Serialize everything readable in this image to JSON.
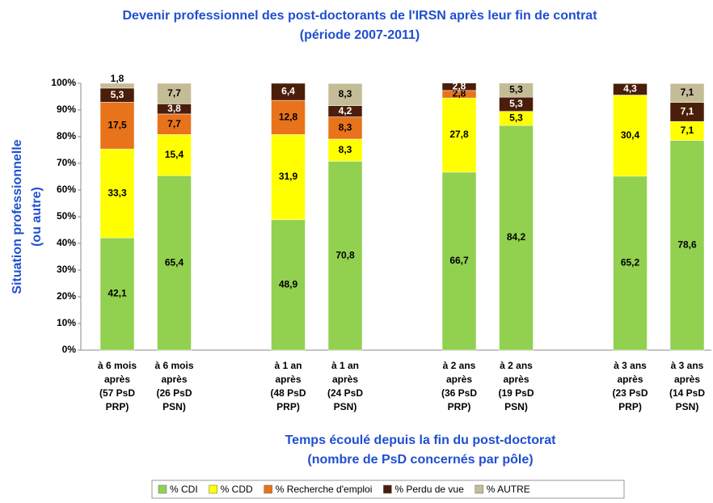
{
  "chart_data": {
    "type": "stacked_bar",
    "title": "Devenir professionnel des post-doctorants de l'IRSN après leur fin de contrat",
    "subtitle": "(période 2007-2011)",
    "x_label": [
      "Temps écoulé depuis la fin du post-doctorat",
      "(nombre de PsD concernés par pôle)"
    ],
    "y_label": [
      "Situation professionnelle",
      "(ou autre)"
    ],
    "categories": [
      [
        "à 6 mois",
        "après",
        "(57 PsD",
        "PRP)"
      ],
      [
        "à 6 mois",
        "après",
        "(26 PsD",
        "PSN)"
      ],
      [
        "à 1 an",
        "après",
        "(48 PsD",
        "PRP)"
      ],
      [
        "à 1 an",
        "après",
        "(24 PsD",
        "PSN)"
      ],
      [
        "à 2 ans",
        "après",
        "(36 PsD",
        "PRP)"
      ],
      [
        "à 2 ans",
        "après",
        "(19 PsD",
        "PSN)"
      ],
      [
        "à 3 ans",
        "après",
        "(23 PsD",
        "PRP)"
      ],
      [
        "à 3 ans",
        "après",
        "(14 PsD",
        "PSN)"
      ]
    ],
    "series": [
      {
        "name": "% CDI",
        "color": "#92d050",
        "values": [
          42.1,
          65.4,
          48.9,
          70.8,
          66.7,
          84.2,
          65.2,
          78.6
        ],
        "value_labels": [
          "42,1",
          "65,4",
          "48,9",
          "70,8",
          "66,7",
          "84,2",
          "65,2",
          "78,6"
        ]
      },
      {
        "name": "% CDD",
        "color": "#ffff00",
        "values": [
          33.3,
          15.4,
          31.9,
          8.3,
          27.8,
          5.3,
          30.4,
          7.1
        ],
        "value_labels": [
          "33,3",
          "15,4",
          "31,9",
          "8,3",
          "27,8",
          "5,3",
          "30,4",
          "7,1"
        ]
      },
      {
        "name": "% Recherche d'emploi",
        "color": "#e8731a",
        "values": [
          17.5,
          7.7,
          12.8,
          8.3,
          2.8,
          null,
          null,
          null
        ],
        "value_labels": [
          "17,5",
          "7,7",
          "12,8",
          "8,3",
          "2,8",
          null,
          null,
          null
        ]
      },
      {
        "name": "% Perdu de vue",
        "color": "#4a1e0a",
        "values": [
          5.3,
          3.8,
          6.4,
          4.2,
          2.8,
          5.3,
          4.3,
          7.1
        ],
        "value_labels": [
          "5,3",
          "3,8",
          "6,4",
          "4,2",
          "2,8",
          "5,3",
          "4,3",
          "7,1"
        ]
      },
      {
        "name": "% AUTRE",
        "color": "#c4bc96",
        "values": [
          1.8,
          7.7,
          null,
          8.3,
          null,
          5.3,
          null,
          7.1
        ],
        "value_labels": [
          "1,8",
          "7,7",
          null,
          "8,3",
          null,
          "5,3",
          null,
          "7,1"
        ]
      }
    ],
    "ylim": [
      0,
      100
    ],
    "yticks": [
      {
        "value": 0,
        "label": "0%"
      },
      {
        "value": 10,
        "label": "10%"
      },
      {
        "value": 20,
        "label": "20%"
      },
      {
        "value": 30,
        "label": "30%"
      },
      {
        "value": 40,
        "label": "40%"
      },
      {
        "value": 50,
        "label": "50%"
      },
      {
        "value": 60,
        "label": "60%"
      },
      {
        "value": 70,
        "label": "70%"
      },
      {
        "value": 80,
        "label": "80%"
      },
      {
        "value": 90,
        "label": "90%"
      },
      {
        "value": 100,
        "label": "100%"
      }
    ],
    "grid": false,
    "legend": "bottom"
  }
}
